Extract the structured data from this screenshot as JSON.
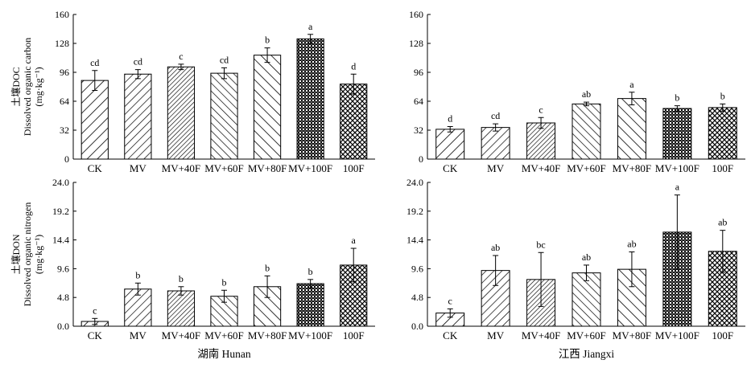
{
  "chart_data": [
    {
      "type": "bar",
      "panel": "top-left",
      "region_label": "",
      "ylabel": [
        "土壤DOC",
        "Dissolved organic carbon",
        "(mg·kg⁻¹)"
      ],
      "categories": [
        "CK",
        "MV",
        "MV+40F",
        "MV+60F",
        "MV+80F",
        "MV+100F",
        "100F"
      ],
      "values": [
        87,
        94,
        102,
        95,
        115,
        133,
        83
      ],
      "errors": [
        11,
        5,
        3,
        6,
        8,
        5,
        11
      ],
      "letters": [
        "cd",
        "cd",
        "c",
        "cd",
        "b",
        "a",
        "d"
      ],
      "ylim": [
        0,
        160
      ],
      "yticks": [
        "0",
        "32",
        "64",
        "96",
        "128",
        "160"
      ]
    },
    {
      "type": "bar",
      "panel": "top-right",
      "region_label": "",
      "ylabel": [],
      "categories": [
        "CK",
        "MV",
        "MV+40F",
        "MV+60F",
        "MV+80F",
        "MV+100F",
        "100F"
      ],
      "values": [
        33,
        35,
        40,
        61,
        67,
        56,
        57
      ],
      "errors": [
        3,
        4,
        6,
        2,
        7,
        3,
        4
      ],
      "letters": [
        "d",
        "cd",
        "c",
        "ab",
        "a",
        "b",
        "b"
      ],
      "ylim": [
        0,
        160
      ],
      "yticks": [
        "0",
        "32",
        "64",
        "96",
        "128",
        "160"
      ]
    },
    {
      "type": "bar",
      "panel": "bottom-left",
      "region_label": "湖南 Hunan",
      "ylabel": [
        "土壤DON",
        "Dissolved organic nitrogen",
        "(mg·kg⁻¹)"
      ],
      "categories": [
        "CK",
        "MV",
        "MV+40F",
        "MV+60F",
        "MV+80F",
        "MV+100F",
        "100F"
      ],
      "values": [
        0.8,
        6.2,
        5.9,
        5.0,
        6.6,
        7.1,
        10.2
      ],
      "errors": [
        0.5,
        1.0,
        0.7,
        1.0,
        1.8,
        0.7,
        2.8
      ],
      "letters": [
        "c",
        "b",
        "b",
        "b",
        "b",
        "b",
        "a"
      ],
      "ylim": [
        0,
        24
      ],
      "yticks": [
        "0.0",
        "4.8",
        "9.6",
        "14.4",
        "19.2",
        "24.0"
      ]
    },
    {
      "type": "bar",
      "panel": "bottom-right",
      "region_label": "江西 Jiangxi",
      "ylabel": [],
      "categories": [
        "CK",
        "MV",
        "MV+40F",
        "MV+60F",
        "MV+80F",
        "MV+100F",
        "100F"
      ],
      "values": [
        2.2,
        9.3,
        7.8,
        8.9,
        9.5,
        15.7,
        12.5
      ],
      "errors": [
        0.7,
        2.5,
        4.5,
        1.3,
        2.9,
        6.2,
        3.5
      ],
      "letters": [
        "c",
        "ab",
        "bc",
        "ab",
        "ab",
        "a",
        "ab"
      ],
      "ylim": [
        0,
        24
      ],
      "yticks": [
        "0.0",
        "4.8",
        "9.6",
        "14.4",
        "19.2",
        "24.0"
      ]
    }
  ]
}
